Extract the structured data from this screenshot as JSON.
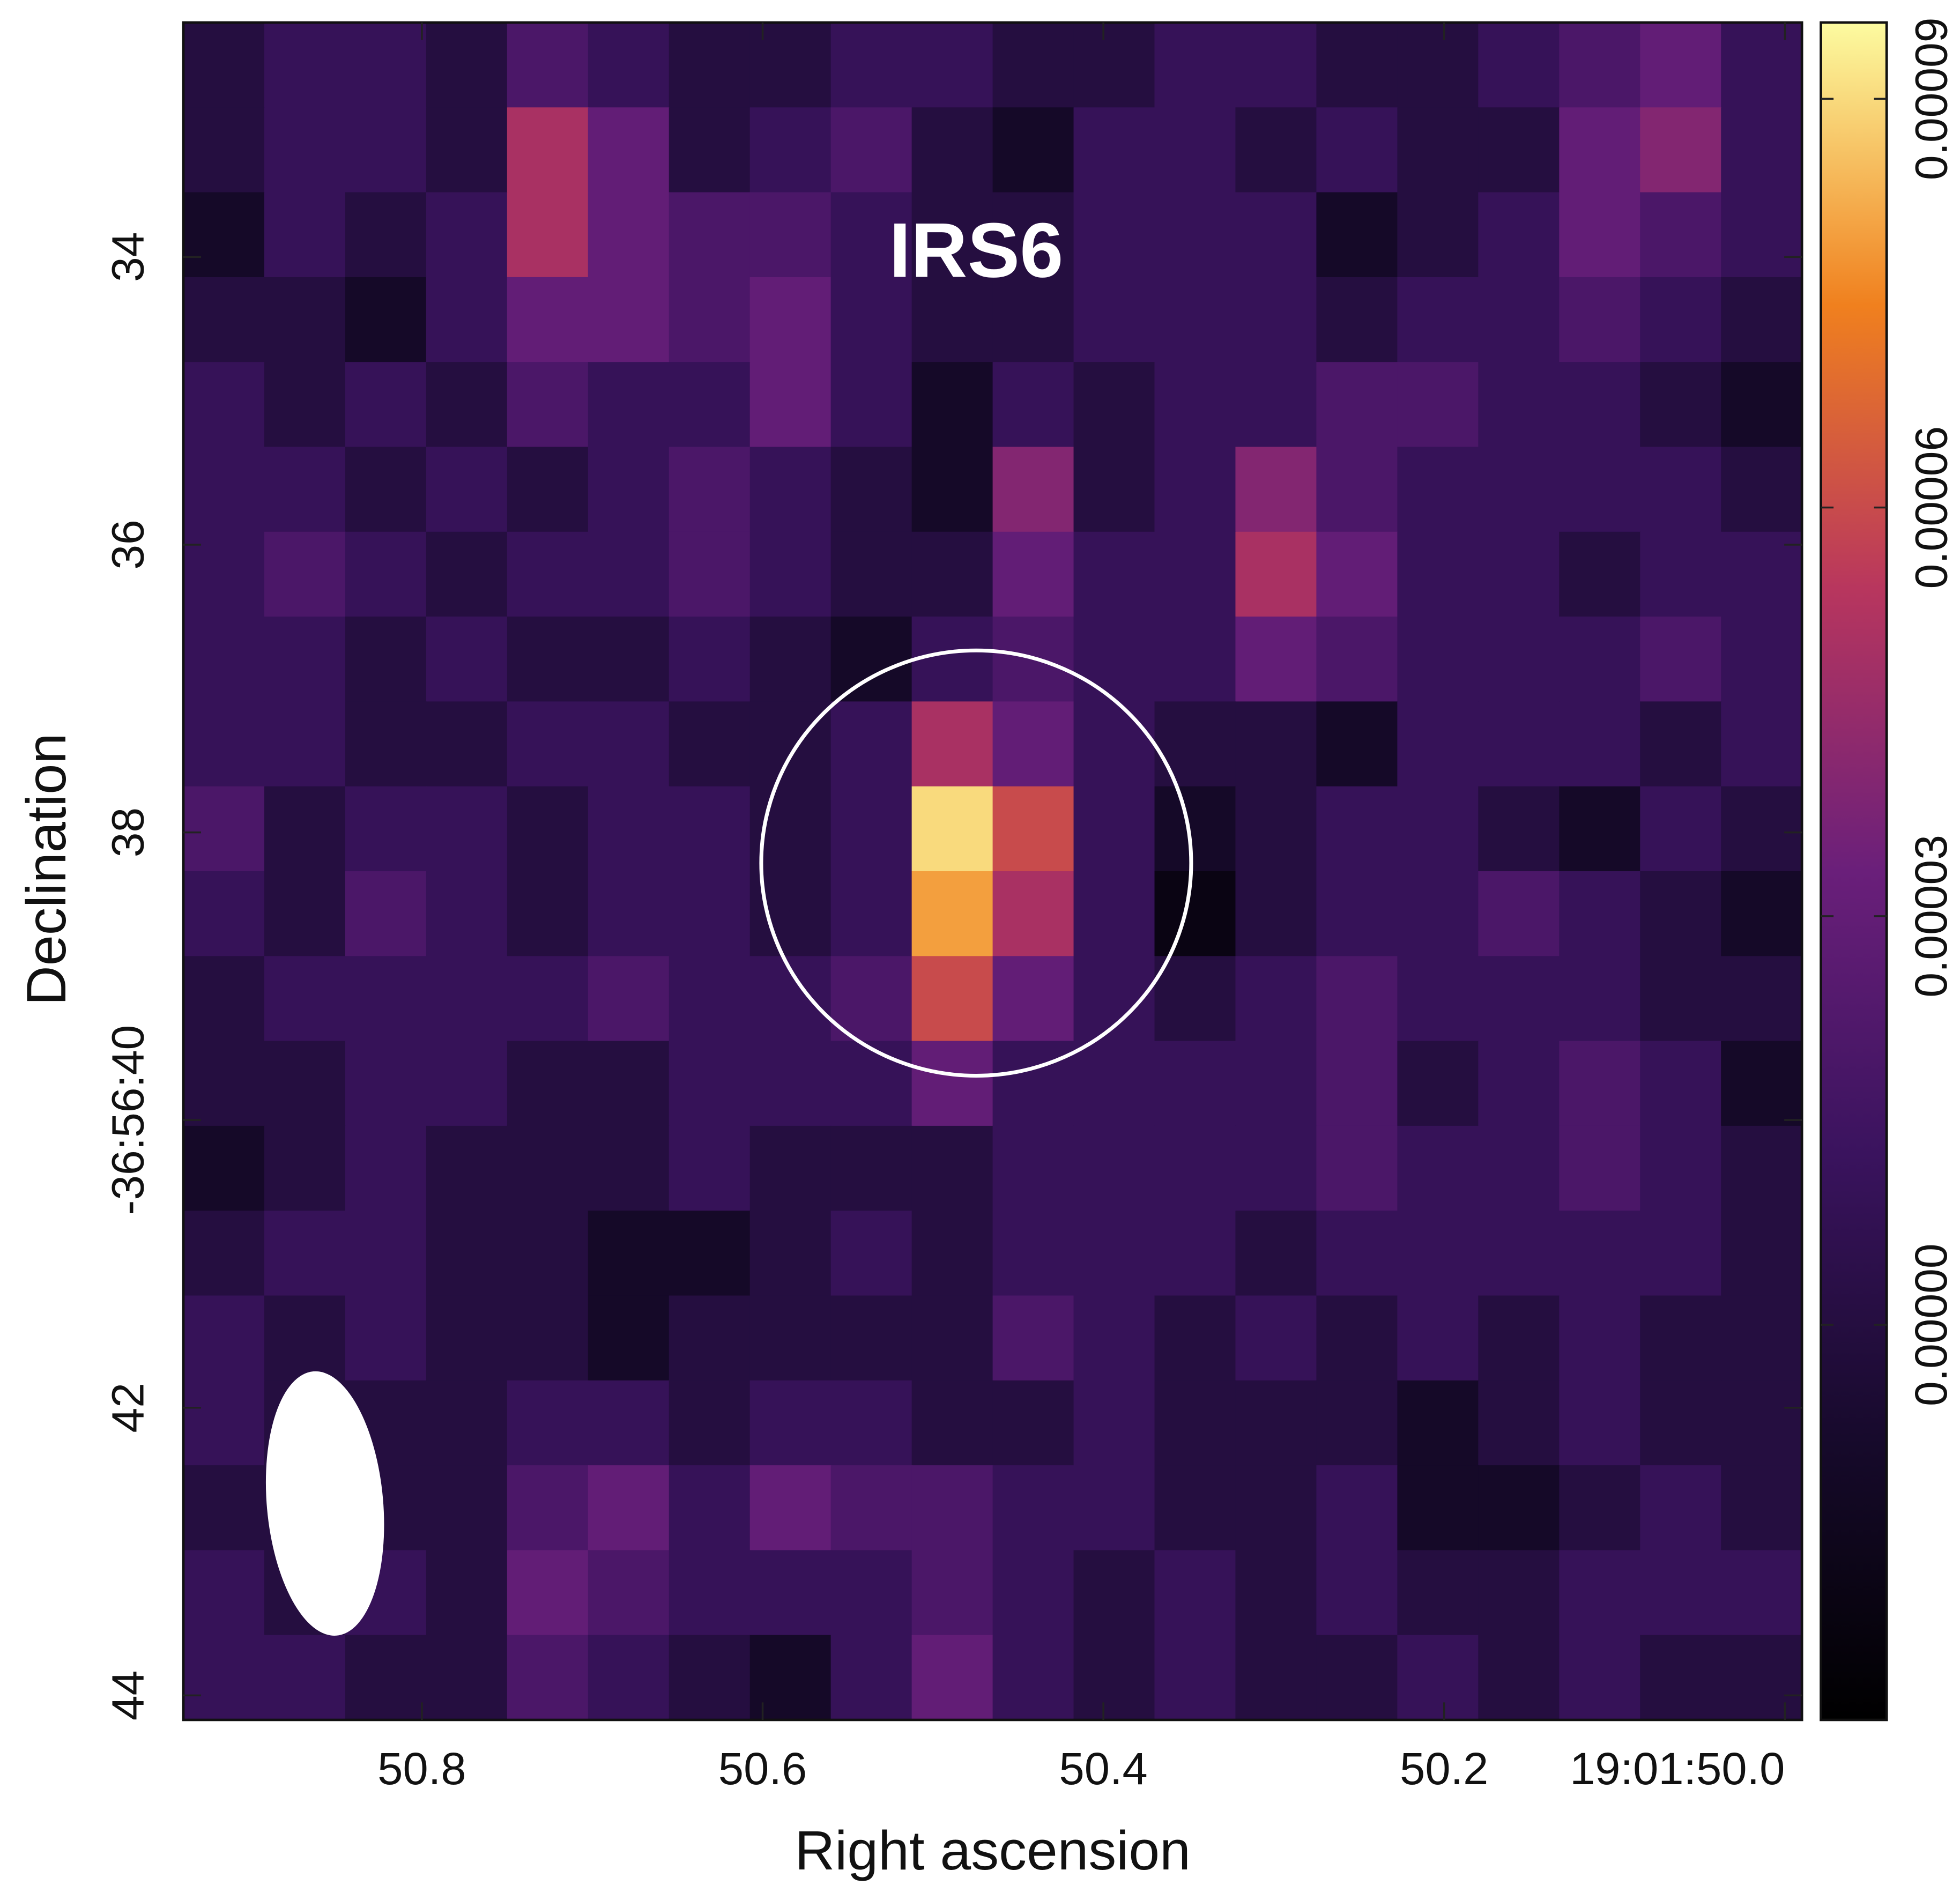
{
  "chart_data": {
    "type": "heatmap",
    "title": "IRS6",
    "x_label": "Right ascension",
    "y_label": "Declination",
    "xlim": [
      50.94,
      49.99
    ],
    "xticks": [
      50.8,
      50.6,
      50.4,
      50.2,
      {
        "value": 50.0,
        "label": "19:01:50.0"
      }
    ],
    "ylim": [
      32.37,
      44.17
    ],
    "yticks": [
      34,
      36,
      38,
      {
        "value": 40,
        "label": "-36:56:40"
      },
      42,
      44
    ],
    "zlim": [
      -2.9e-05,
      9.56e-05
    ],
    "zticks": [
      {
        "value": 0,
        "label": "0.00000"
      },
      3e-05,
      6e-05,
      9e-05
    ],
    "colormap": [
      "#000000",
      "#170a2c",
      "#3a135e",
      "#6a1f7a",
      "#b8365e",
      "#f0801e",
      "#fcfba0"
    ],
    "z": [
      [
        0,
        1e-05,
        1e-05,
        0,
        2e-05,
        1e-05,
        0,
        0,
        1e-05,
        1e-05,
        0,
        0,
        1e-05,
        1e-05,
        0,
        0,
        1e-05,
        2e-05,
        3e-05,
        1e-05
      ],
      [
        0,
        1e-05,
        1e-05,
        0,
        5e-05,
        3e-05,
        0,
        1e-05,
        2e-05,
        0,
        -1e-05,
        1e-05,
        1e-05,
        0,
        1e-05,
        0,
        0,
        3e-05,
        4e-05,
        1e-05
      ],
      [
        -1e-05,
        1e-05,
        0,
        1e-05,
        5e-05,
        3e-05,
        2e-05,
        2e-05,
        1e-05,
        0,
        0,
        1e-05,
        1e-05,
        1e-05,
        -1e-05,
        0,
        1e-05,
        3e-05,
        2e-05,
        1e-05
      ],
      [
        0,
        0,
        -1e-05,
        1e-05,
        3e-05,
        3e-05,
        2e-05,
        3e-05,
        1e-05,
        0,
        0,
        1e-05,
        1e-05,
        1e-05,
        0,
        1e-05,
        1e-05,
        2e-05,
        1e-05,
        0
      ],
      [
        1e-05,
        0,
        1e-05,
        0,
        2e-05,
        1e-05,
        1e-05,
        3e-05,
        1e-05,
        -1e-05,
        1e-05,
        0,
        1e-05,
        1e-05,
        2e-05,
        2e-05,
        1e-05,
        1e-05,
        0,
        -1e-05
      ],
      [
        1e-05,
        1e-05,
        0,
        1e-05,
        0,
        1e-05,
        2e-05,
        1e-05,
        0,
        -1e-05,
        4e-05,
        0,
        1e-05,
        4e-05,
        2e-05,
        1e-05,
        1e-05,
        1e-05,
        1e-05,
        0
      ],
      [
        1e-05,
        2e-05,
        1e-05,
        0,
        1e-05,
        1e-05,
        2e-05,
        1e-05,
        0,
        0,
        3e-05,
        1e-05,
        1e-05,
        5e-05,
        3e-05,
        1e-05,
        1e-05,
        0,
        1e-05,
        1e-05
      ],
      [
        1e-05,
        1e-05,
        0,
        1e-05,
        0,
        0,
        1e-05,
        0,
        -1e-05,
        1e-05,
        2e-05,
        1e-05,
        1e-05,
        3e-05,
        2e-05,
        1e-05,
        1e-05,
        1e-05,
        2e-05,
        1e-05
      ],
      [
        1e-05,
        1e-05,
        0,
        0,
        1e-05,
        1e-05,
        0,
        0,
        1e-05,
        5e-05,
        3e-05,
        1e-05,
        0,
        0,
        -1e-05,
        1e-05,
        1e-05,
        1e-05,
        0,
        1e-05
      ],
      [
        2e-05,
        0,
        1e-05,
        1e-05,
        0,
        1e-05,
        1e-05,
        0,
        1e-05,
        9e-05,
        6e-05,
        1e-05,
        -1e-05,
        0,
        1e-05,
        1e-05,
        0,
        -1e-05,
        1e-05,
        0
      ],
      [
        1e-05,
        0,
        2e-05,
        1e-05,
        0,
        1e-05,
        1e-05,
        0,
        1e-05,
        8e-05,
        5e-05,
        1e-05,
        -2e-05,
        0,
        1e-05,
        1e-05,
        2e-05,
        1e-05,
        0,
        -1e-05
      ],
      [
        0,
        1e-05,
        1e-05,
        1e-05,
        1e-05,
        2e-05,
        1e-05,
        1e-05,
        2e-05,
        6e-05,
        3e-05,
        1e-05,
        0,
        1e-05,
        2e-05,
        1e-05,
        1e-05,
        1e-05,
        0,
        0
      ],
      [
        0,
        0,
        1e-05,
        1e-05,
        0,
        0,
        1e-05,
        1e-05,
        1e-05,
        3e-05,
        1e-05,
        1e-05,
        1e-05,
        1e-05,
        2e-05,
        0,
        1e-05,
        2e-05,
        1e-05,
        -1e-05
      ],
      [
        -1e-05,
        0,
        1e-05,
        0,
        0,
        0,
        1e-05,
        0,
        0,
        0,
        1e-05,
        1e-05,
        1e-05,
        1e-05,
        2e-05,
        1e-05,
        1e-05,
        2e-05,
        1e-05,
        0
      ],
      [
        0,
        1e-05,
        1e-05,
        0,
        0,
        -1e-05,
        -1e-05,
        0,
        1e-05,
        0,
        1e-05,
        1e-05,
        1e-05,
        0,
        1e-05,
        1e-05,
        1e-05,
        1e-05,
        1e-05,
        0
      ],
      [
        1e-05,
        0,
        1e-05,
        0,
        0,
        -1e-05,
        0,
        0,
        0,
        0,
        2e-05,
        1e-05,
        0,
        1e-05,
        0,
        1e-05,
        0,
        1e-05,
        0,
        0
      ],
      [
        1e-05,
        0,
        0,
        0,
        1e-05,
        1e-05,
        0,
        1e-05,
        1e-05,
        0,
        0,
        1e-05,
        0,
        0,
        0,
        -1e-05,
        0,
        1e-05,
        0,
        0
      ],
      [
        0,
        0,
        0,
        0,
        2e-05,
        3e-05,
        1e-05,
        3e-05,
        2e-05,
        2e-05,
        1e-05,
        1e-05,
        0,
        0,
        1e-05,
        -1e-05,
        -1e-05,
        0,
        1e-05,
        0
      ],
      [
        1e-05,
        0,
        1e-05,
        0,
        3e-05,
        2e-05,
        1e-05,
        1e-05,
        1e-05,
        2e-05,
        1e-05,
        0,
        1e-05,
        0,
        1e-05,
        0,
        0,
        1e-05,
        1e-05,
        1e-05
      ],
      [
        1e-05,
        1e-05,
        0,
        0,
        2e-05,
        1e-05,
        0,
        -1e-05,
        1e-05,
        3e-05,
        1e-05,
        0,
        1e-05,
        0,
        0,
        1e-05,
        0,
        1e-05,
        0,
        0
      ]
    ]
  }
}
